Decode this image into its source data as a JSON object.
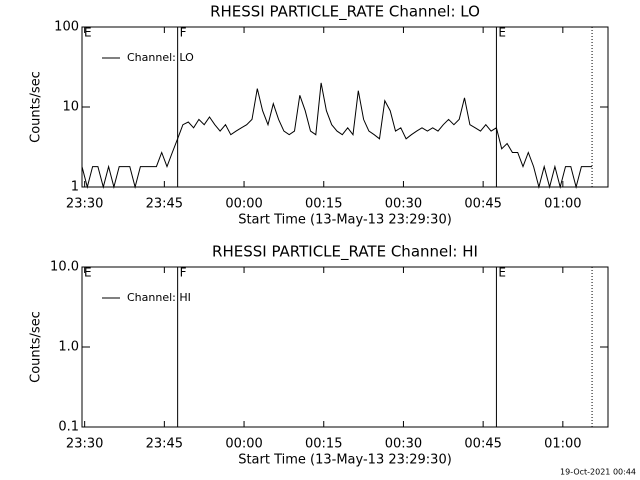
{
  "chart_data": [
    {
      "type": "line",
      "title": "RHESSI PARTICLE_RATE Channel: LO",
      "xlabel": "Start Time (13-May-13 23:29:30)",
      "ylabel": "Counts/sec",
      "log_y": true,
      "legend": "top-left",
      "xlim": [
        0,
        99
      ],
      "xticks": [
        {
          "value": 0.5,
          "label": "23:30"
        },
        {
          "value": 15.5,
          "label": "23:45"
        },
        {
          "value": 30.5,
          "label": "00:00"
        },
        {
          "value": 45.5,
          "label": "00:15"
        },
        {
          "value": 60.5,
          "label": "00:30"
        },
        {
          "value": 75.5,
          "label": "00:45"
        },
        {
          "value": 90.5,
          "label": "01:00"
        }
      ],
      "ylim": [
        1,
        100
      ],
      "yticks": [
        1,
        10,
        100
      ],
      "markers": [
        {
          "x": 0,
          "label": "E"
        },
        {
          "x": 18,
          "label": "F"
        },
        {
          "x": 78,
          "label": "E"
        },
        {
          "x": 96,
          "style": "dotted"
        }
      ],
      "x": [
        0,
        1,
        2,
        3,
        4,
        5,
        6,
        7,
        8,
        9,
        10,
        11,
        12,
        13,
        14,
        15,
        16,
        17,
        18,
        19,
        20,
        21,
        22,
        23,
        24,
        25,
        26,
        27,
        28,
        29,
        30,
        31,
        32,
        33,
        34,
        35,
        36,
        37,
        38,
        39,
        40,
        41,
        42,
        43,
        44,
        45,
        46,
        47,
        48,
        49,
        50,
        51,
        52,
        53,
        54,
        55,
        56,
        57,
        58,
        59,
        60,
        61,
        62,
        63,
        64,
        65,
        66,
        67,
        68,
        69,
        70,
        71,
        72,
        73,
        74,
        75,
        76,
        77,
        78,
        79,
        80,
        81,
        82,
        83,
        84,
        85,
        86,
        87,
        88,
        89,
        90,
        91,
        92,
        93,
        94,
        95,
        96
      ],
      "series": [
        {
          "name": "Channel: LO",
          "color": "#000000",
          "values": [
            1.8,
            1,
            1.8,
            1.8,
            1,
            1.8,
            1,
            1.8,
            1.8,
            1.8,
            1,
            1.8,
            1.8,
            1.8,
            1.8,
            2.7,
            1.8,
            2.7,
            4,
            6,
            6.5,
            5.5,
            7,
            6,
            7.5,
            6,
            5,
            6,
            4.5,
            5,
            5.5,
            6,
            7,
            17,
            9,
            6,
            11,
            7,
            5,
            4.5,
            5,
            14,
            9,
            5,
            4.5,
            20,
            9,
            6,
            5,
            4.5,
            5.5,
            4.5,
            16,
            7,
            5,
            4.5,
            4,
            12,
            9,
            5,
            5.5,
            4,
            4.5,
            5,
            5.5,
            5,
            5.5,
            5,
            6,
            7,
            6,
            7,
            13,
            6,
            5.5,
            5,
            6,
            5,
            5.5,
            3,
            3.5,
            2.7,
            2.7,
            1.8,
            2.7,
            1.8,
            1,
            1.8,
            1,
            1.8,
            1,
            1.8,
            1.8,
            1,
            1.8,
            1.8,
            1.8
          ]
        }
      ]
    },
    {
      "type": "line",
      "title": "RHESSI PARTICLE_RATE Channel: HI",
      "xlabel": "Start Time (13-May-13 23:29:30)",
      "ylabel": "Counts/sec",
      "log_y": true,
      "legend": "top-left",
      "xlim": [
        0,
        99
      ],
      "xticks": [
        {
          "value": 0.5,
          "label": "23:30"
        },
        {
          "value": 15.5,
          "label": "23:45"
        },
        {
          "value": 30.5,
          "label": "00:00"
        },
        {
          "value": 45.5,
          "label": "00:15"
        },
        {
          "value": 60.5,
          "label": "00:30"
        },
        {
          "value": 75.5,
          "label": "00:45"
        },
        {
          "value": 90.5,
          "label": "01:00"
        }
      ],
      "ylim": [
        0.1,
        10
      ],
      "yticks": [
        {
          "value": 0.1,
          "label": "0.1"
        },
        {
          "value": 1,
          "label": "1.0"
        },
        {
          "value": 10,
          "label": "10.0"
        }
      ],
      "markers": [
        {
          "x": 0,
          "label": "E"
        },
        {
          "x": 18,
          "label": "F"
        },
        {
          "x": 78,
          "label": "E"
        },
        {
          "x": 96,
          "style": "dotted"
        }
      ],
      "x": [],
      "series": [
        {
          "name": "Channel: HI",
          "color": "#000000",
          "values": []
        }
      ]
    }
  ],
  "footer": "19-Oct-2021 00:44"
}
